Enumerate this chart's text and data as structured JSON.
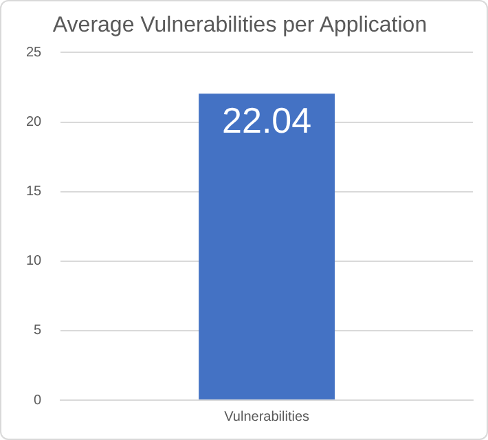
{
  "chart_data": {
    "type": "bar",
    "title": "Average Vulnerabilities per Application",
    "categories": [
      "Vulnerabilities"
    ],
    "values": [
      22.04
    ],
    "color": "#4472c4",
    "ylim": [
      0,
      25
    ],
    "yticks": [
      0,
      5,
      10,
      15,
      20,
      25
    ],
    "grid": "y",
    "data_labels": true,
    "legend": false
  }
}
